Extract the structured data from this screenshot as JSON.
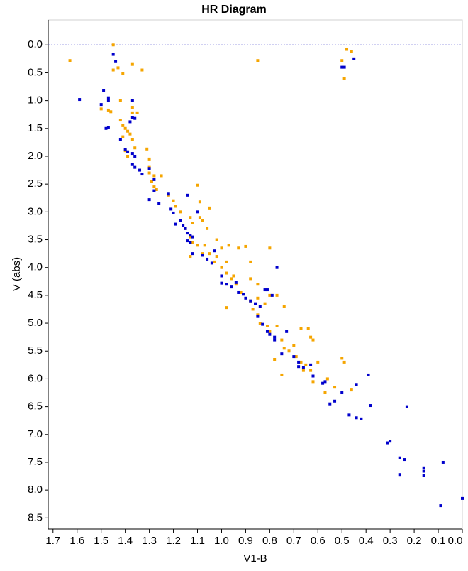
{
  "chart_data": {
    "type": "scatter",
    "title": "HR Diagram",
    "x_label": "V1-B",
    "y_label": "V (abs)",
    "xlim": [
      1.72,
      0.0
    ],
    "ylim": [
      -0.45,
      8.7
    ],
    "y_inverted": true,
    "x_inverted": true,
    "xticks": [
      1.7,
      1.6,
      1.5,
      1.4,
      1.3,
      1.2,
      1.1,
      {
        "value": 1.0,
        "label": "1.0"
      },
      0.9,
      0.8,
      0.7,
      0.6,
      0.5,
      0.4,
      0.3,
      0.2,
      0.1,
      {
        "value": 0.0,
        "label": "0.0"
      }
    ],
    "yticks": [
      {
        "value": 0.0,
        "label": "0.0"
      },
      0.5,
      {
        "value": 1.0,
        "label": "1.0"
      },
      1.5,
      {
        "value": 2.0,
        "label": "2.0"
      },
      2.5,
      {
        "value": 3.0,
        "label": "3.0"
      },
      3.5,
      {
        "value": 4.0,
        "label": "4.0"
      },
      4.5,
      {
        "value": 5.0,
        "label": "5.0"
      },
      5.5,
      {
        "value": 6.0,
        "label": "6.0"
      },
      6.5,
      {
        "value": 7.0,
        "label": "7.0"
      },
      7.5,
      {
        "value": 8.0,
        "label": "8.0"
      },
      8.5
    ],
    "reference_line": {
      "value": 0.0,
      "color": "#4444cc"
    },
    "series": [
      {
        "color": "#f5a500",
        "x": [
          1.63,
          1.45,
          1.45,
          1.43,
          1.41,
          1.37,
          1.33,
          0.85,
          0.5,
          0.48,
          0.46,
          0.49,
          1.5,
          1.47,
          1.46,
          1.42,
          1.37,
          1.37,
          1.35,
          1.42,
          1.41,
          1.4,
          1.39,
          1.41,
          1.38,
          1.37,
          1.36,
          1.31,
          1.4,
          1.39,
          1.3,
          1.3,
          1.3,
          1.28,
          1.25,
          1.29,
          1.28,
          1.27,
          1.22,
          1.2,
          1.19,
          1.17,
          1.1,
          1.09,
          1.05,
          1.13,
          1.12,
          1.09,
          1.08,
          1.06,
          1.15,
          1.13,
          1.12,
          1.1,
          1.13,
          1.08,
          1.05,
          1.02,
          1.0,
          1.02,
          1.03,
          0.97,
          0.98,
          0.93,
          0.9,
          0.8,
          1.0,
          0.98,
          0.96,
          0.94,
          0.92,
          0.88,
          0.85,
          0.88,
          0.85,
          0.88,
          0.8,
          0.77,
          0.74,
          0.82,
          0.87,
          0.85,
          0.84,
          0.81,
          0.8,
          0.77,
          0.75,
          0.74,
          0.72,
          0.7,
          0.67,
          0.64,
          0.63,
          0.62,
          0.69,
          0.67,
          0.65,
          0.66,
          0.63,
          0.6,
          0.62,
          0.56,
          0.53,
          0.5,
          0.49,
          0.46,
          0.75,
          0.98,
          1.07,
          0.95,
          0.78,
          0.57
        ],
        "values": [
          0.28,
          0.0,
          0.45,
          0.41,
          0.52,
          0.35,
          0.45,
          0.28,
          0.28,
          0.08,
          0.12,
          0.6,
          1.15,
          1.17,
          1.2,
          1.0,
          1.12,
          1.22,
          1.22,
          1.35,
          1.45,
          1.5,
          1.55,
          1.65,
          1.6,
          1.7,
          1.85,
          1.87,
          1.9,
          2.0,
          2.05,
          2.2,
          2.3,
          2.35,
          2.35,
          2.45,
          2.55,
          2.6,
          2.7,
          2.8,
          2.9,
          3.0,
          2.52,
          2.82,
          2.93,
          3.1,
          3.2,
          3.1,
          3.15,
          3.3,
          3.3,
          3.45,
          3.55,
          3.6,
          3.8,
          3.75,
          3.75,
          3.5,
          3.65,
          3.8,
          3.9,
          3.6,
          3.9,
          3.65,
          3.62,
          3.65,
          4.0,
          4.1,
          4.2,
          4.3,
          4.45,
          4.2,
          4.3,
          3.9,
          4.55,
          4.6,
          4.5,
          4.5,
          4.7,
          4.65,
          4.75,
          4.85,
          5.0,
          5.05,
          5.15,
          5.05,
          5.3,
          5.45,
          5.5,
          5.4,
          5.1,
          5.1,
          5.25,
          5.3,
          5.6,
          5.7,
          5.75,
          5.85,
          5.85,
          5.7,
          6.05,
          6.0,
          6.15,
          5.63,
          5.7,
          6.2,
          5.93,
          4.72,
          3.6,
          4.15,
          5.65,
          6.25
        ]
      },
      {
        "color": "#0000cc",
        "x": [
          1.45,
          1.44,
          0.5,
          0.49,
          0.45,
          1.59,
          1.49,
          1.47,
          1.47,
          1.5,
          1.37,
          1.37,
          1.38,
          1.36,
          1.48,
          1.47,
          1.42,
          1.4,
          1.39,
          1.37,
          1.36,
          1.37,
          1.36,
          1.34,
          1.33,
          1.3,
          1.28,
          1.28,
          1.3,
          1.26,
          1.22,
          1.21,
          1.2,
          1.14,
          1.1,
          1.17,
          1.16,
          1.15,
          1.14,
          1.13,
          1.12,
          1.13,
          1.14,
          1.12,
          1.08,
          1.06,
          1.04,
          1.0,
          1.0,
          0.98,
          0.96,
          0.93,
          0.91,
          0.9,
          0.88,
          0.86,
          0.84,
          0.85,
          0.83,
          0.81,
          0.8,
          0.78,
          0.78,
          0.75,
          0.73,
          0.81,
          0.82,
          0.79,
          0.77,
          0.7,
          0.68,
          0.68,
          0.66,
          0.63,
          0.62,
          0.58,
          0.57,
          0.55,
          0.53,
          0.5,
          0.47,
          0.44,
          0.42,
          0.38,
          0.39,
          0.44,
          0.31,
          0.3,
          0.26,
          0.24,
          0.26,
          0.23,
          0.16,
          0.16,
          0.16,
          0.08,
          0.09,
          0.0,
          1.19,
          1.03,
          0.94
        ],
        "values": [
          0.17,
          0.3,
          0.4,
          0.4,
          0.25,
          0.98,
          0.82,
          0.95,
          1.0,
          1.07,
          1.0,
          1.3,
          1.38,
          1.32,
          1.5,
          1.48,
          1.7,
          1.88,
          1.92,
          1.95,
          2.0,
          2.15,
          2.2,
          2.25,
          2.32,
          2.22,
          2.42,
          2.62,
          2.78,
          2.85,
          2.68,
          2.95,
          3.02,
          2.7,
          3.0,
          3.15,
          3.25,
          3.3,
          3.38,
          3.42,
          3.45,
          3.55,
          3.52,
          3.75,
          3.78,
          3.85,
          3.92,
          4.15,
          4.28,
          4.3,
          4.35,
          4.45,
          4.48,
          4.55,
          4.6,
          4.65,
          4.7,
          4.88,
          5.02,
          5.15,
          5.2,
          5.25,
          5.3,
          5.55,
          5.15,
          4.4,
          4.4,
          4.5,
          4.0,
          5.6,
          5.7,
          5.78,
          5.8,
          5.75,
          5.95,
          6.08,
          6.05,
          6.45,
          6.4,
          6.25,
          6.65,
          6.7,
          6.72,
          6.48,
          5.93,
          6.1,
          7.15,
          7.12,
          7.42,
          7.45,
          7.72,
          6.5,
          7.6,
          7.66,
          7.74,
          7.5,
          8.28,
          8.15,
          3.22,
          3.7,
          4.27
        ]
      }
    ]
  }
}
